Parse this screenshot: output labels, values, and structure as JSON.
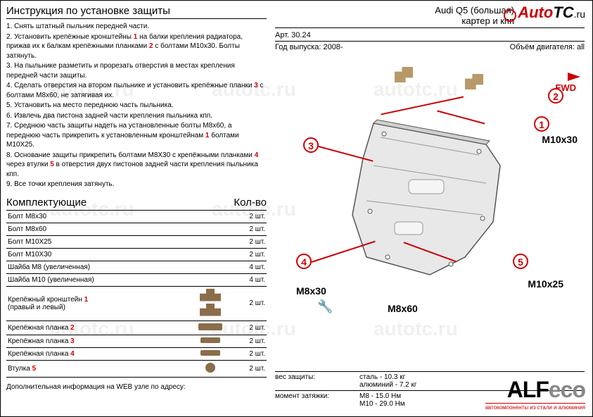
{
  "watermark_text": "autotc.ru",
  "corner_logo": {
    "auto": "Auto",
    "tc": "TC",
    "ru": ".ru"
  },
  "instructions": {
    "title": "Инструкция по установке защиты",
    "lines": [
      "1.  Снять штатный пыльник передней части.",
      "2.  Установить крепёжные кронштейны <r>1</r> на балки крепления радиатора, прижав их к балкам крепёжными планками <r>2</r> с болтами М10х30. Болты затянуть.",
      "3.  На пыльнике разметить и прорезать отверстия в местах крепления передней части защиты.",
      "4.  Сделать отверстия на втором пыльнике и установить крепёжные планки <r>3</r> с болтами М8х60, не затягивая их.",
      "5.  Установить на место переднюю часть пыльника.",
      "6.  Извлечь два пистона задней части крепления пыльника кпп.",
      "7.  Среднюю часть защиты надеть на установленные болты М8х60, а переднюю часть прикрепить к установленным кронштейнам <r>1</r> болтами М10Х25.",
      "8.  Основание защиты прикрепить болтами М8Х30 с крепёжными планками <r>4</r> через втулки <r>5</r> в отверстия двух пистонов задней части крепления пыльника кпп.",
      "9.   Все точки крепления затянуть."
    ]
  },
  "parts": {
    "title_left": "Комплектующие",
    "title_right": "Кол-во",
    "rows": [
      {
        "name": "Болт М8х30",
        "icon": "",
        "qty": "2 шт."
      },
      {
        "name": "Болт М8х60",
        "icon": "",
        "qty": "2 шт."
      },
      {
        "name": "Болт М10Х25",
        "icon": "",
        "qty": "2 шт."
      },
      {
        "name": "Болт М10Х30",
        "icon": "",
        "qty": "2 шт."
      },
      {
        "name": "Шайба М8   (увеличенная)",
        "icon": "",
        "qty": "4 шт."
      },
      {
        "name": "Шайба М10 (увеличенная)",
        "icon": "",
        "qty": "4 шт."
      },
      {
        "name": "Крепёжный кронштейн <r>1</r><br>(правый и левый)",
        "icon": "bracket",
        "qty": "2 шт."
      },
      {
        "name": "Крепёжная планка <r>2</r>",
        "icon": "plank",
        "qty": "2 шт."
      },
      {
        "name": "Крепёжная планка <r>3</r>",
        "icon": "plank-small",
        "qty": "2 шт."
      },
      {
        "name": "Крепёжная планка <r>4</r>",
        "icon": "plank-small",
        "qty": "2 шт."
      },
      {
        "name": "Втулка <r>5</r>",
        "icon": "bush",
        "qty": "2 шт."
      }
    ],
    "footer": "Дополнительная информация на WEB узле по адресу:"
  },
  "header": {
    "title": "Audi Q5 (большая)",
    "subtitle": "картер и кпп",
    "art_label": "Арт.",
    "art_value": "30.24",
    "year_label": "Год выпуска:",
    "year_value": "2008-",
    "engine_label": "Объём двигателя:",
    "engine_value": "all"
  },
  "diagram": {
    "fwd": "FWD",
    "callouts": {
      "c1": "1",
      "c2": "2",
      "c3": "3",
      "c4": "4",
      "c5": "5"
    },
    "bolt_labels": {
      "b1": "M10x30",
      "b2": "M8x30",
      "b3": "M8x60",
      "b4": "M10x25"
    }
  },
  "footer_right": {
    "weight_label": "вес защиты:",
    "weight_steel": "сталь - 10.3 кг",
    "weight_alu": "алюминий - 7.2 кг",
    "torque_label": "момент затяжки:",
    "torque_m8": "M8  - 15.0 Нм",
    "torque_m10": "M10 - 29.0 Нм"
  },
  "brand": {
    "name1": "ALF",
    "name2": "ecо",
    "tagline": "автокомпоненты из стали и алюминия"
  }
}
